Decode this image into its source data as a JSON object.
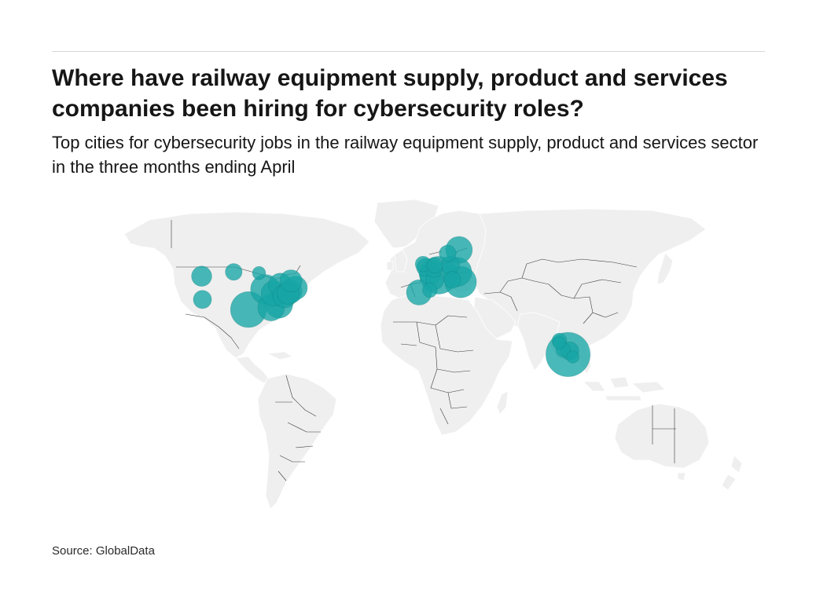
{
  "header": {
    "title": "Where have railway equipment supply, product and services companies been hiring for cybersecurity roles?",
    "subtitle": "Top cities for cybersecurity jobs in the railway equipment supply, product and services sector in the three months ending April"
  },
  "footer": {
    "source": "Source: GlobalData"
  },
  "map": {
    "land_color": "#efefef",
    "border_color": "#3a3a3a",
    "bubble_color": "#17a5a5",
    "bubble_opacity": 0.78
  },
  "markers": [
    {
      "region": "North America",
      "lon": -122.3,
      "lat": 47.6,
      "size": 2
    },
    {
      "region": "North America",
      "lon": -121.9,
      "lat": 37.3,
      "size": 1.5
    },
    {
      "region": "North America",
      "lon": -104.8,
      "lat": 49.5,
      "size": 1.2
    },
    {
      "region": "North America",
      "lon": -91.0,
      "lat": 49.0,
      "size": 0.6
    },
    {
      "region": "North America",
      "lon": -96.8,
      "lat": 32.8,
      "size": 8
    },
    {
      "region": "North America",
      "lon": -87.6,
      "lat": 41.8,
      "size": 5
    },
    {
      "region": "North America",
      "lon": -84.4,
      "lat": 33.7,
      "size": 4
    },
    {
      "region": "North America",
      "lon": -80.2,
      "lat": 35.2,
      "size": 4.5
    },
    {
      "region": "North America",
      "lon": -83.0,
      "lat": 39.9,
      "size": 3.5
    },
    {
      "region": "North America",
      "lon": -79.4,
      "lat": 43.7,
      "size": 3
    },
    {
      "region": "North America",
      "lon": -77.0,
      "lat": 38.9,
      "size": 3
    },
    {
      "region": "North America",
      "lon": -75.2,
      "lat": 40.0,
      "size": 2.5
    },
    {
      "region": "North America",
      "lon": -73.6,
      "lat": 45.5,
      "size": 2.5
    },
    {
      "region": "North America",
      "lon": -74.0,
      "lat": 40.7,
      "size": 3
    },
    {
      "region": "North America",
      "lon": -71.1,
      "lat": 42.4,
      "size": 3
    },
    {
      "region": "Europe",
      "lon": 18.1,
      "lat": 59.3,
      "size": 4
    },
    {
      "region": "Europe",
      "lon": 11.9,
      "lat": 57.7,
      "size": 1.2
    },
    {
      "region": "Europe",
      "lon": -0.1,
      "lat": 51.5,
      "size": 1.5
    },
    {
      "region": "Europe",
      "lon": -1.5,
      "lat": 53.0,
      "size": 1
    },
    {
      "region": "Europe",
      "lon": 4.9,
      "lat": 52.4,
      "size": 1
    },
    {
      "region": "Europe",
      "lon": 4.4,
      "lat": 50.8,
      "size": 1.2
    },
    {
      "region": "Europe",
      "lon": 2.3,
      "lat": 48.9,
      "size": 2.5
    },
    {
      "region": "Europe",
      "lon": 7.0,
      "lat": 48.0,
      "size": 9
    },
    {
      "region": "Europe",
      "lon": 4.8,
      "lat": 45.8,
      "size": 1.5
    },
    {
      "region": "Europe",
      "lon": 13.4,
      "lat": 52.5,
      "size": 1.5
    },
    {
      "region": "Europe",
      "lon": 17.0,
      "lat": 49.5,
      "size": 5
    },
    {
      "region": "Europe",
      "lon": 19.0,
      "lat": 45.0,
      "size": 6
    },
    {
      "region": "Europe",
      "lon": 14.5,
      "lat": 46.0,
      "size": 1.2
    },
    {
      "region": "Europe",
      "lon": 2.2,
      "lat": 41.4,
      "size": 0.8
    },
    {
      "region": "Europe",
      "lon": -3.7,
      "lat": 40.4,
      "size": 3.5
    },
    {
      "region": "Asia",
      "lon": 72.9,
      "lat": 19.1,
      "size": 0.8
    },
    {
      "region": "Asia",
      "lon": 72.8,
      "lat": 18.0,
      "size": 0.5
    },
    {
      "region": "Asia",
      "lon": 77.6,
      "lat": 12.9,
      "size": 13
    },
    {
      "region": "Asia",
      "lon": 75.0,
      "lat": 15.0,
      "size": 0.8
    },
    {
      "region": "Asia",
      "lon": 78.5,
      "lat": 14.5,
      "size": 1.5
    },
    {
      "region": "Asia",
      "lon": 80.2,
      "lat": 11.8,
      "size": 0.5
    }
  ]
}
